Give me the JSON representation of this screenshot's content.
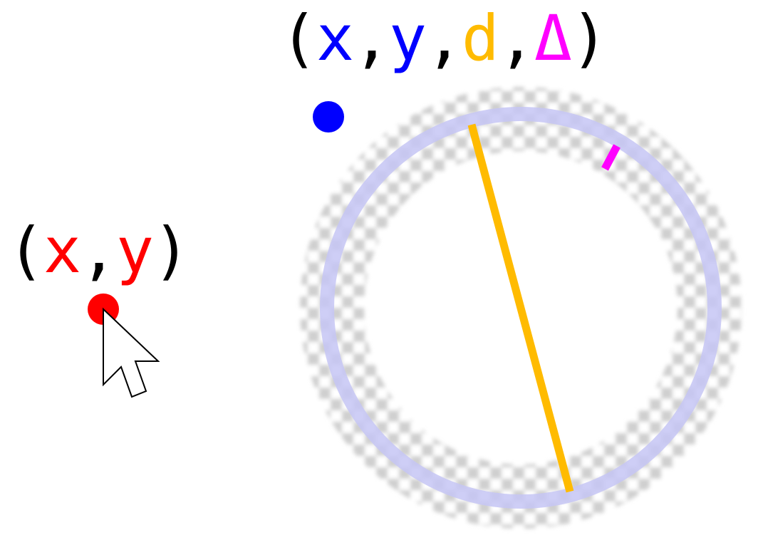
{
  "cursor_label": {
    "open": "(",
    "x": "x",
    "sep1": ",",
    "y": "y",
    "close": ")"
  },
  "circle_label": {
    "open": "(",
    "x": "x",
    "sep1": ",",
    "y": "y",
    "sep2": ",",
    "d": "d",
    "sep3": ",",
    "delta": "Δ",
    "close": ")"
  },
  "colors": {
    "text": "#000000",
    "red": "#ff0000",
    "blue": "#0000ff",
    "orange": "#ffbb00",
    "magenta": "#ff00ff",
    "ring": "#c8c8f5",
    "checker": "#cccccc"
  },
  "icons": {
    "cursor": "mouse-pointer-arrow-icon"
  }
}
